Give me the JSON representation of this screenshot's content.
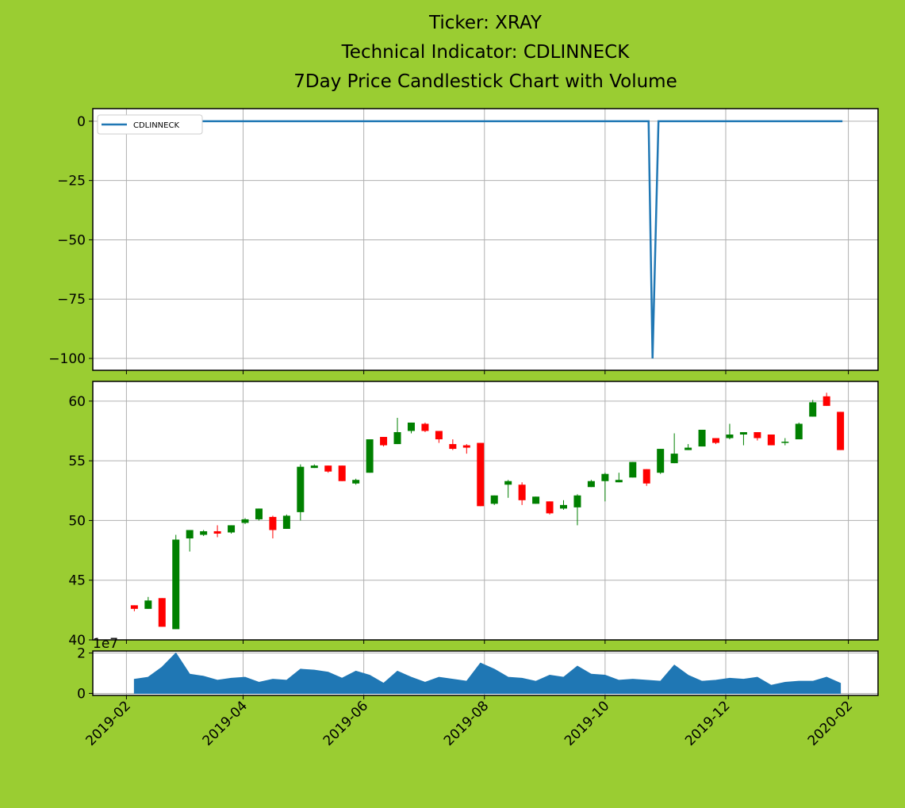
{
  "chart_data": [
    {
      "type": "line",
      "title": [
        "Ticker: XRAY",
        "Technical Indicator: CDLINNECK",
        "7Day Price Candlestick Chart with Volume"
      ],
      "x": [
        "2019-02-01",
        "2019-10-23",
        "2019-10-25",
        "2019-10-28",
        "2020-01-29"
      ],
      "series": [
        {
          "name": "CDLINNECK",
          "color": "#1f77b4",
          "values": [
            0,
            0,
            -100,
            0,
            0
          ]
        }
      ],
      "xlim": [
        "2019-01-15",
        "2020-02-16"
      ],
      "xticks": [
        "2019-02",
        "2019-04",
        "2019-06",
        "2019-08",
        "2019-10",
        "2019-12",
        "2020-02"
      ],
      "ylim": [
        -105,
        5.3
      ],
      "yticks": [
        {
          "value": -100,
          "label": "−100"
        },
        {
          "value": -75,
          "label": "−75"
        },
        {
          "value": -50,
          "label": "−50"
        },
        {
          "value": -25,
          "label": "−25"
        },
        0
      ],
      "grid": true,
      "legend": "upper left"
    },
    {
      "type": "candlestick",
      "x": [
        "2019-02-05",
        "2019-02-12",
        "2019-02-19",
        "2019-02-26",
        "2019-03-05",
        "2019-03-12",
        "2019-03-19",
        "2019-03-26",
        "2019-04-02",
        "2019-04-09",
        "2019-04-16",
        "2019-04-23",
        "2019-04-30",
        "2019-05-07",
        "2019-05-14",
        "2019-05-21",
        "2019-05-28",
        "2019-06-04",
        "2019-06-11",
        "2019-06-18",
        "2019-06-25",
        "2019-07-02",
        "2019-07-09",
        "2019-07-16",
        "2019-07-23",
        "2019-07-30",
        "2019-08-06",
        "2019-08-13",
        "2019-08-20",
        "2019-08-27",
        "2019-09-03",
        "2019-09-10",
        "2019-09-17",
        "2019-09-24",
        "2019-10-01",
        "2019-10-08",
        "2019-10-15",
        "2019-10-22",
        "2019-10-29",
        "2019-11-05",
        "2019-11-12",
        "2019-11-19",
        "2019-11-26",
        "2019-12-03",
        "2019-12-10",
        "2019-12-17",
        "2019-12-24",
        "2019-12-31",
        "2020-01-07",
        "2020-01-14",
        "2020-01-21",
        "2020-01-28"
      ],
      "open": [
        42.9,
        42.6,
        43.5,
        40.9,
        48.5,
        48.8,
        49.1,
        49.0,
        49.8,
        50.1,
        50.3,
        49.3,
        50.7,
        54.4,
        54.6,
        54.6,
        53.1,
        54.0,
        57.0,
        56.4,
        57.5,
        58.1,
        57.5,
        56.4,
        56.3,
        56.5,
        51.4,
        53.0,
        53.0,
        51.4,
        51.6,
        51.0,
        51.1,
        52.8,
        53.3,
        53.2,
        53.6,
        54.3,
        54.0,
        54.8,
        55.9,
        56.2,
        56.9,
        56.9,
        57.2,
        57.4,
        57.2,
        56.5,
        56.8,
        58.7,
        60.4,
        59.1
      ],
      "high": [
        42.9,
        43.6,
        43.5,
        48.8,
        49.2,
        49.2,
        49.6,
        49.6,
        50.2,
        51.0,
        50.4,
        50.5,
        54.7,
        54.7,
        54.6,
        54.6,
        53.5,
        56.8,
        57.0,
        58.6,
        58.2,
        58.2,
        57.5,
        56.8,
        56.4,
        56.5,
        52.1,
        53.4,
        53.2,
        52.0,
        51.6,
        51.7,
        52.2,
        53.4,
        54.0,
        54.0,
        54.9,
        54.3,
        56.0,
        57.3,
        56.4,
        57.6,
        56.9,
        58.1,
        57.4,
        57.4,
        57.2,
        56.9,
        58.2,
        60.1,
        60.7,
        59.1
      ],
      "low": [
        42.4,
        42.6,
        41.1,
        40.9,
        47.4,
        48.7,
        48.6,
        48.9,
        49.7,
        50.0,
        48.5,
        49.3,
        50.0,
        54.4,
        54.0,
        53.3,
        53.0,
        54.0,
        56.2,
        56.4,
        57.3,
        57.4,
        56.5,
        55.9,
        55.6,
        51.2,
        51.3,
        51.9,
        51.3,
        51.4,
        50.5,
        50.9,
        49.6,
        52.8,
        51.6,
        53.2,
        53.6,
        52.9,
        53.9,
        54.8,
        55.9,
        56.2,
        56.4,
        56.8,
        56.3,
        56.7,
        56.3,
        56.3,
        56.8,
        58.7,
        59.6,
        55.9
      ],
      "close": [
        42.6,
        43.3,
        41.1,
        48.4,
        49.2,
        49.1,
        48.9,
        49.6,
        50.1,
        51.0,
        49.2,
        50.4,
        54.5,
        54.6,
        54.1,
        53.3,
        53.4,
        56.8,
        56.3,
        57.4,
        58.2,
        57.5,
        56.8,
        56.0,
        56.1,
        51.2,
        52.1,
        53.3,
        51.7,
        52.0,
        50.6,
        51.3,
        52.1,
        53.3,
        53.9,
        53.4,
        54.9,
        53.1,
        56.0,
        55.6,
        56.1,
        57.6,
        56.5,
        57.2,
        57.4,
        56.9,
        56.3,
        56.6,
        58.1,
        59.9,
        59.6,
        55.9
      ],
      "up_color": "green",
      "down_color": "red",
      "xlim": [
        "2019-01-15",
        "2020-02-16"
      ],
      "xticks": [
        "2019-02",
        "2019-04",
        "2019-06",
        "2019-08",
        "2019-10",
        "2019-12",
        "2020-02"
      ],
      "ylim": [
        40,
        61.65
      ],
      "yticks": [
        40,
        45,
        50,
        55,
        60
      ],
      "grid": true
    },
    {
      "type": "area",
      "x": [
        "2019-02-05",
        "2019-02-12",
        "2019-02-19",
        "2019-02-26",
        "2019-03-05",
        "2019-03-12",
        "2019-03-19",
        "2019-03-26",
        "2019-04-02",
        "2019-04-09",
        "2019-04-16",
        "2019-04-23",
        "2019-04-30",
        "2019-05-07",
        "2019-05-14",
        "2019-05-21",
        "2019-05-28",
        "2019-06-04",
        "2019-06-11",
        "2019-06-18",
        "2019-06-25",
        "2019-07-02",
        "2019-07-09",
        "2019-07-16",
        "2019-07-23",
        "2019-07-30",
        "2019-08-06",
        "2019-08-13",
        "2019-08-20",
        "2019-08-27",
        "2019-09-03",
        "2019-09-10",
        "2019-09-17",
        "2019-09-24",
        "2019-10-01",
        "2019-10-08",
        "2019-10-15",
        "2019-10-22",
        "2019-10-29",
        "2019-11-05",
        "2019-11-12",
        "2019-11-19",
        "2019-11-26",
        "2019-12-03",
        "2019-12-10",
        "2019-12-17",
        "2019-12-24",
        "2019-12-31",
        "2020-01-07",
        "2020-01-14",
        "2020-01-21",
        "2020-01-28"
      ],
      "values": [
        0.7,
        0.8,
        1.3,
        2.0,
        0.95,
        0.85,
        0.65,
        0.75,
        0.8,
        0.55,
        0.7,
        0.65,
        1.2,
        1.15,
        1.05,
        0.75,
        1.1,
        0.9,
        0.5,
        1.1,
        0.8,
        0.55,
        0.8,
        0.7,
        0.6,
        1.5,
        1.2,
        0.8,
        0.75,
        0.6,
        0.9,
        0.8,
        1.35,
        0.95,
        0.9,
        0.65,
        0.7,
        0.65,
        0.6,
        1.4,
        0.9,
        0.6,
        0.65,
        0.75,
        0.7,
        0.8,
        0.4,
        0.55,
        0.6,
        0.6,
        0.8,
        0.5
      ],
      "color": "#1f77b4",
      "offset_label": "1e7",
      "xlim": [
        "2019-01-15",
        "2020-02-16"
      ],
      "xticks": [
        "2019-02",
        "2019-04",
        "2019-06",
        "2019-08",
        "2019-10",
        "2019-12",
        "2020-02"
      ],
      "ylim": [
        -0.1,
        2.1
      ],
      "yticks": [
        0,
        2
      ],
      "grid": true,
      "xtick_labels": true
    }
  ]
}
